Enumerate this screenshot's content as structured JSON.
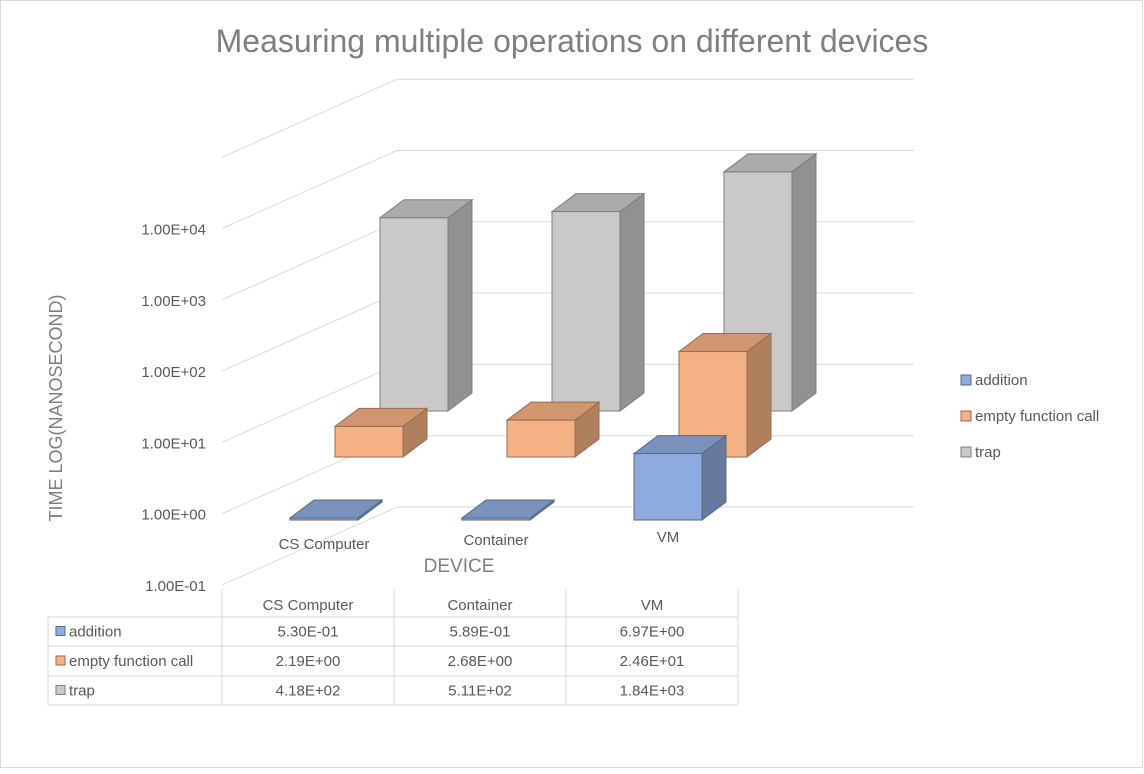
{
  "chart_data": {
    "type": "bar",
    "title": "Measuring multiple operations on different devices",
    "xlabel": "DEVICE",
    "ylabel": "TIME  LOG(NANOSECOND)",
    "scale": "log",
    "yticks": [
      "1.00E-01",
      "1.00E+00",
      "1.00E+01",
      "1.00E+02",
      "1.00E+03",
      "1.00E+04"
    ],
    "ylim": [
      0.1,
      100000
    ],
    "grid": true,
    "legend": "right",
    "categories": [
      "CS Computer",
      "Container",
      "VM"
    ],
    "series": [
      {
        "name": "addition",
        "values": [
          0.53,
          0.589,
          6.97
        ],
        "labels": [
          "5.30E-01",
          "5.89E-01",
          "6.97E+00"
        ],
        "color": "#8faadc"
      },
      {
        "name": "empty function call",
        "values": [
          2.19,
          2.68,
          24.6
        ],
        "labels": [
          "2.19E+00",
          "2.68E+00",
          "2.46E+01"
        ],
        "color": "#f4b183"
      },
      {
        "name": "trap",
        "values": [
          418,
          511,
          1840
        ],
        "labels": [
          "4.18E+02",
          "5.11E+02",
          "1.84E+03"
        ],
        "color": "#c9c9c9"
      }
    ]
  }
}
